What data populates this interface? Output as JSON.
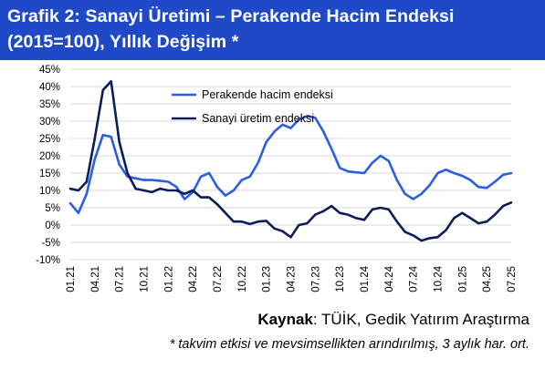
{
  "title_line1": "Grafik 2: Sanayi Üretimi – Perakende Hacim Endeksi",
  "title_line2": "(2015=100), Yıllık Değişim *",
  "source_label": "Kaynak",
  "source_sep": ": ",
  "source_text": "TÜİK, Gedik Yatırım Araştırma",
  "footnote": "* takvim etkisi ve mevsimsellikten arındırılmış, 3 aylık har. ort.",
  "colors": {
    "header_bg": "#1f49c6",
    "retail": "#2a5fe0",
    "industrial": "#0d1d5c",
    "grid": "#d9d9d9"
  },
  "chart_data": {
    "type": "line",
    "ylim": [
      -10,
      45
    ],
    "yticks": [
      -10,
      -5,
      0,
      5,
      10,
      15,
      20,
      25,
      30,
      35,
      40,
      45
    ],
    "ytick_labels": [
      "-10%",
      "-5%",
      "0%",
      "5%",
      "10%",
      "15%",
      "20%",
      "25%",
      "30%",
      "35%",
      "40%",
      "45%"
    ],
    "xtick_labels": [
      "01.21",
      "04.21",
      "07.21",
      "10.21",
      "01.22",
      "04.22",
      "07.22",
      "10.22",
      "01.23",
      "04.23",
      "07.23",
      "10.23",
      "01.24",
      "04.24",
      "07.24",
      "10.24",
      "01.25",
      "04.25",
      "07.25"
    ],
    "x": [
      "01.21",
      "02.21",
      "03.21",
      "04.21",
      "05.21",
      "06.21",
      "07.21",
      "08.21",
      "09.21",
      "10.21",
      "11.21",
      "12.21",
      "01.22",
      "02.22",
      "03.22",
      "04.22",
      "05.22",
      "06.22",
      "07.22",
      "08.22",
      "09.22",
      "10.22",
      "11.22",
      "12.22",
      "01.23",
      "02.23",
      "03.23",
      "04.23",
      "05.23",
      "06.23",
      "07.23",
      "08.23",
      "09.23",
      "10.23",
      "11.23",
      "12.23",
      "01.24",
      "02.24",
      "03.24",
      "04.24",
      "05.24",
      "06.24",
      "07.24",
      "08.24",
      "09.24",
      "10.24",
      "11.24",
      "12.24",
      "01.25",
      "02.25",
      "03.25",
      "04.25",
      "05.25",
      "06.25",
      "07.25"
    ],
    "series": [
      {
        "name": "Perakende hacim endeksi",
        "values": [
          6.3,
          3.5,
          9.0,
          19.0,
          26.0,
          25.5,
          17.5,
          14.0,
          13.5,
          13.0,
          13.0,
          12.8,
          12.5,
          11.0,
          7.5,
          9.5,
          14.0,
          15.0,
          11.0,
          8.5,
          10.0,
          13.0,
          14.0,
          18.0,
          24.0,
          27.0,
          29.0,
          28.0,
          30.5,
          31.5,
          31.0,
          27.0,
          22.0,
          16.5,
          15.5,
          15.2,
          15.0,
          18.0,
          20.0,
          18.5,
          13.0,
          9.0,
          7.5,
          9.0,
          11.5,
          15.0,
          16.0,
          15.0,
          14.2,
          13.0,
          11.0,
          10.7,
          12.5,
          14.5,
          15.0
        ]
      },
      {
        "name": "Sanayi üretim endeksi",
        "values": [
          10.5,
          10.0,
          12.5,
          25.0,
          39.0,
          41.5,
          24.0,
          15.0,
          10.5,
          10.0,
          9.5,
          10.5,
          10.0,
          10.0,
          9.0,
          10.0,
          8.0,
          8.0,
          6.0,
          3.5,
          1.0,
          1.0,
          0.3,
          1.0,
          1.2,
          -1.0,
          -1.8,
          -3.5,
          0.0,
          0.5,
          3.0,
          4.0,
          5.5,
          3.5,
          3.0,
          2.0,
          1.5,
          4.5,
          5.0,
          4.5,
          1.0,
          -2.0,
          -3.0,
          -4.5,
          -3.8,
          -3.5,
          -1.5,
          2.0,
          3.5,
          2.0,
          0.5,
          1.0,
          3.0,
          5.5,
          6.5
        ]
      }
    ]
  }
}
